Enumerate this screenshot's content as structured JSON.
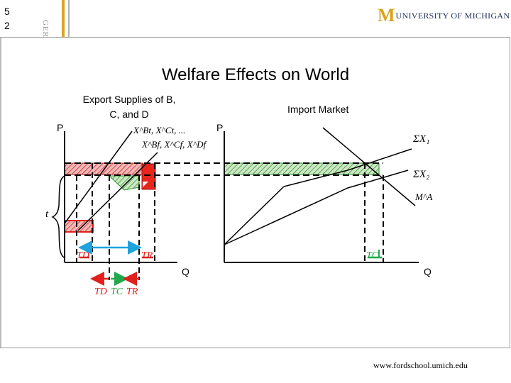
{
  "slide_number": "5\n2",
  "side_label": "GER",
  "logo": {
    "mark": "M",
    "text": "UNIVERSITY OF MICHIGAN"
  },
  "title": "Welfare Effects on World",
  "left_panel": {
    "heading": "Export Supplies of B, C, and D",
    "axis_p": "P",
    "axis_q": "Q",
    "supply_labels_line1": "X^Bt, X^Ct, ...",
    "supply_labels_line2": "X^Bf, X^Cf, X^Df",
    "t_label": "t",
    "td_label": "TD",
    "tr_label": "TR",
    "bottom_labels": [
      "TD",
      "TC",
      "TR"
    ]
  },
  "right_panel": {
    "heading": "Import Market",
    "axis_p": "P",
    "axis_q": "Q",
    "curve_x1": "ΣX₁",
    "curve_x2": "ΣX₂",
    "curve_ma": "M^A",
    "tc_label": "TC"
  },
  "footer": {
    "url": "www.fordschool.umich.edu"
  },
  "colors": {
    "gold": "#d9a521",
    "navy": "#1a2f5a",
    "hatch_red": "#e04040",
    "hatch_green": "#2e8b2e",
    "arrow_blue": "#1fa3dc",
    "arrow_red": "#e0201c",
    "arrow_green": "#21a84a"
  }
}
